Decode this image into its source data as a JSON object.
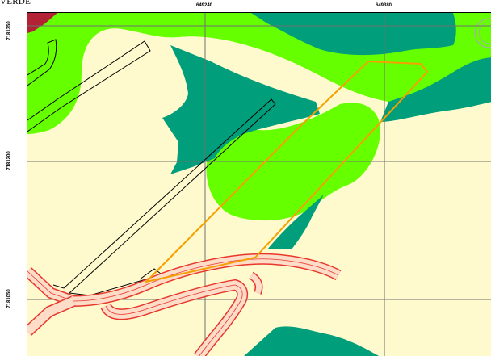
{
  "title": "VERDE",
  "grid": {
    "x_labels": [
      "649240",
      "649380"
    ],
    "y_labels": [
      "7181350",
      "7181200",
      "7181050"
    ]
  },
  "colors": {
    "background": "#FFFACD",
    "light_green": "#66FF00",
    "dark_green": "#009E7A",
    "red_area": "#B22234",
    "gray_area": "#AAAAAA",
    "boundary_orange": "#F5A000",
    "road_red": "#E8372C",
    "road_fill": "#FDDCC8",
    "grid_line": "#707070"
  },
  "legend": {
    "polygon": "orange outlined area",
    "roads": "red double-lined roads",
    "paths": "black outlined tracks"
  }
}
